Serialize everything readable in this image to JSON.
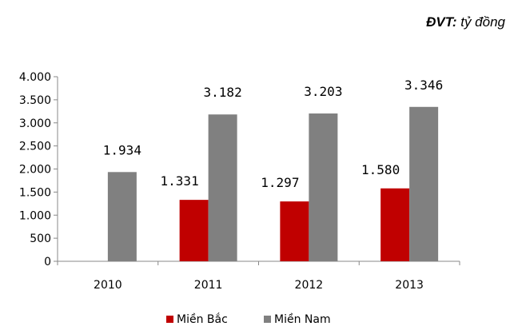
{
  "unit_note": {
    "label": "ĐVT:",
    "value": "tỷ đồng"
  },
  "chart_data": {
    "type": "bar",
    "categories": [
      "2010",
      "2011",
      "2012",
      "2013"
    ],
    "series": [
      {
        "name": "Miền Bắc",
        "values": [
          null,
          1331,
          1297,
          1580
        ],
        "labels": [
          "",
          "1.331",
          "1.297",
          "1.580"
        ],
        "color": "#C00000"
      },
      {
        "name": "Miền Nam",
        "values": [
          1934,
          3182,
          3203,
          3346
        ],
        "labels": [
          "1.934",
          "3.182",
          "3.203",
          "3.346"
        ],
        "color": "#808080"
      }
    ],
    "ylim": [
      0,
      4000
    ],
    "yticks": [
      0,
      500,
      1000,
      1500,
      2000,
      2500,
      3000,
      3500,
      4000
    ],
    "ytick_labels": [
      "0",
      "500",
      "1.000",
      "1.500",
      "2.000",
      "2.500",
      "3.000",
      "3.500",
      "4.000"
    ],
    "grid": false,
    "legend_position": "bottom",
    "title": "",
    "xlabel": "",
    "ylabel": ""
  }
}
